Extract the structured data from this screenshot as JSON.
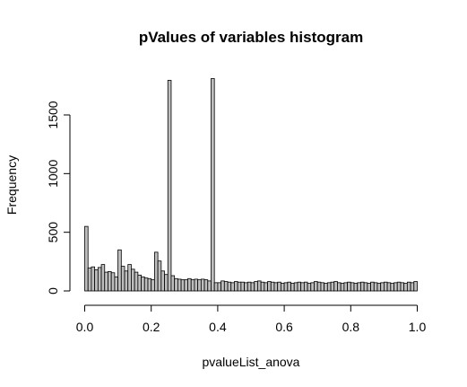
{
  "chart_data": {
    "type": "bar",
    "title": "pValues of variables histogram",
    "xlabel": "pvalueList_anova",
    "ylabel": "Frequency",
    "xlim": [
      0,
      1
    ],
    "ylim": [
      0,
      1800
    ],
    "x_ticks": [
      "0.0",
      "0.2",
      "0.4",
      "0.6",
      "0.8",
      "1.0"
    ],
    "y_ticks": [
      "0",
      "500",
      "1000",
      "1500"
    ],
    "bin_width": 0.01,
    "bin_start": 0,
    "values": [
      550,
      195,
      205,
      180,
      200,
      225,
      160,
      165,
      155,
      120,
      350,
      210,
      170,
      225,
      185,
      160,
      135,
      120,
      110,
      105,
      95,
      330,
      255,
      170,
      140,
      1795,
      130,
      105,
      100,
      95,
      95,
      105,
      95,
      100,
      95,
      100,
      95,
      85,
      1810,
      70,
      70,
      85,
      80,
      75,
      70,
      80,
      75,
      75,
      70,
      75,
      70,
      80,
      85,
      75,
      70,
      80,
      75,
      70,
      75,
      65,
      70,
      75,
      65,
      70,
      75,
      70,
      75,
      65,
      70,
      80,
      75,
      70,
      65,
      70,
      75,
      80,
      70,
      65,
      70,
      75,
      70,
      65,
      70,
      75,
      70,
      65,
      75,
      70,
      65,
      70,
      75,
      70,
      65,
      70,
      75,
      70,
      65,
      75,
      70,
      80
    ]
  }
}
